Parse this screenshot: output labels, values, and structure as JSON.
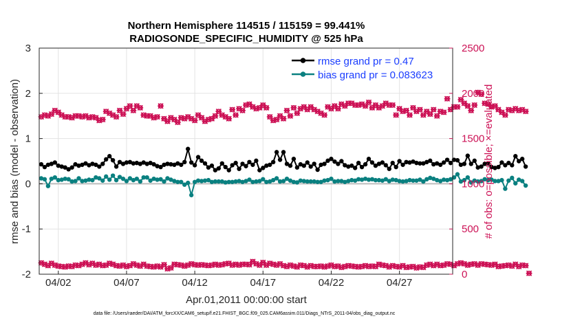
{
  "chart_data": {
    "type": "line",
    "title_line1": "Northern Hemisphere 114515 / 115159 = 99.441%",
    "title_line2": "RADIOSONDE_SPECIFIC_HUMIDITY @ 525 hPa",
    "ylabel": "rmse and bias (model - observation)",
    "ylabel_right": "# of obs: o=possible; ×=evaluated",
    "xlabel": "Apr.01,2011 00:00:00 start",
    "footnote": "data file: /Users/raeder/DAI/ATM_forcXX/CAM6_setup/f.e21.FHIST_BGC.f09_025.CAM6assim.011/Diags_NTrS_2011-04/obs_diag_output.nc",
    "ylim": [
      -2,
      3
    ],
    "ylim_right": [
      0,
      2500
    ],
    "xlim": [
      0.6,
      30.9
    ],
    "yticks": [
      "-2",
      "-1",
      "0",
      "1",
      "2",
      "3"
    ],
    "yticks_right": [
      "0",
      "500",
      "1000",
      "1500",
      "2000",
      "2500"
    ],
    "xticks": [
      {
        "day": 2,
        "label": "04/02"
      },
      {
        "day": 7,
        "label": "04/07"
      },
      {
        "day": 12,
        "label": "04/12"
      },
      {
        "day": 17,
        "label": "04/17"
      },
      {
        "day": 22,
        "label": "04/22"
      },
      {
        "day": 27,
        "label": "04/27"
      }
    ],
    "grid": true,
    "legend_position": "top-right",
    "legend": [
      {
        "label": "rmse grand pr = 0.47",
        "color": "#000000"
      },
      {
        "label": "bias grand pr = 0.083623",
        "color": "#0a8080"
      }
    ],
    "colors": {
      "rmse": "#000000",
      "bias": "#0a8080",
      "obs": "#cc1155",
      "zero_line": "#bdbdbd",
      "legend_text": "#1a3dff"
    },
    "series": [
      {
        "name": "rmse",
        "x_start": 0.75,
        "x_step": 0.25,
        "values": [
          0.43,
          0.37,
          0.42,
          0.44,
          0.47,
          0.4,
          0.38,
          0.36,
          0.32,
          0.36,
          0.43,
          0.4,
          0.42,
          0.45,
          0.41,
          0.44,
          0.42,
          0.38,
          0.44,
          0.54,
          0.61,
          0.52,
          0.38,
          0.48,
          0.44,
          0.47,
          0.48,
          0.45,
          0.46,
          0.44,
          0.47,
          0.44,
          0.46,
          0.43,
          0.39,
          0.37,
          0.42,
          0.44,
          0.43,
          0.42,
          0.45,
          0.42,
          0.48,
          0.77,
          0.47,
          0.41,
          0.59,
          0.51,
          0.45,
          0.36,
          0.4,
          0.3,
          0.34,
          0.45,
          0.37,
          0.3,
          0.41,
          0.46,
          0.33,
          0.44,
          0.39,
          0.48,
          0.42,
          0.51,
          0.3,
          0.35,
          0.4,
          0.42,
          0.48,
          0.7,
          0.53,
          0.7,
          0.44,
          0.4,
          0.55,
          0.36,
          0.43,
          0.4,
          0.47,
          0.38,
          0.44,
          0.31,
          0.42,
          0.44,
          0.51,
          0.55,
          0.49,
          0.44,
          0.5,
          0.41,
          0.38,
          0.4,
          0.35,
          0.46,
          0.37,
          0.43,
          0.55,
          0.47,
          0.4,
          0.44,
          0.47,
          0.41,
          0.33,
          0.46,
          0.37,
          0.5,
          0.42,
          0.48,
          0.47,
          0.49,
          0.46,
          0.45,
          0.45,
          0.48,
          0.51,
          0.43,
          0.45,
          0.42,
          0.47,
          0.53,
          0.46,
          0.53,
          0.52,
          0.42,
          0.44,
          0.62,
          0.44,
          0.51,
          0.36,
          0.38,
          0.44,
          0.45,
          0.37,
          0.35,
          0.37,
          0.47,
          0.41,
          0.46,
          0.41,
          0.61,
          0.5,
          0.55,
          0.38
        ]
      },
      {
        "name": "bias",
        "x_start": 0.75,
        "x_step": 0.25,
        "values": [
          0.12,
          0.1,
          -0.05,
          0.11,
          0.14,
          0.08,
          0.09,
          0.11,
          0.1,
          0.05,
          0.06,
          0.12,
          0.06,
          0.07,
          0.09,
          0.08,
          0.14,
          0.12,
          0.07,
          0.16,
          0.09,
          0.18,
          0.08,
          0.15,
          0.11,
          0.06,
          0.12,
          0.08,
          0.11,
          0.05,
          0.14,
          0.14,
          0.07,
          0.11,
          0.09,
          0.1,
          0.05,
          0.12,
          0.09,
          0.06,
          0.04,
          0.04,
          -0.02,
          0.02,
          -0.25,
          0.04,
          0.07,
          0.06,
          0.07,
          0.08,
          0.04,
          0.05,
          0.05,
          0.05,
          0.03,
          0.04,
          0.04,
          0.05,
          0.06,
          0.04,
          0.06,
          0.09,
          0.04,
          0.05,
          0.06,
          0.1,
          0.04,
          0.05,
          0.08,
          0.12,
          0.05,
          0.06,
          0.11,
          0.07,
          0.04,
          0.03,
          0.07,
          0.06,
          0.05,
          0.05,
          0.05,
          0.04,
          0.04,
          0.07,
          0.08,
          0.11,
          0.05,
          0.06,
          0.06,
          0.04,
          0.06,
          0.08,
          0.07,
          0.1,
          0.09,
          0.11,
          0.09,
          0.1,
          0.08,
          0.08,
          0.07,
          0.1,
          0.06,
          0.09,
          0.08,
          0.06,
          0.05,
          0.06,
          0.08,
          0.07,
          0.07,
          0.09,
          0.05,
          0.1,
          0.13,
          0.11,
          0.08,
          0.06,
          0.09,
          0.08,
          0.1,
          0.14,
          0.21,
          0.05,
          0.08,
          0.14,
          0.03,
          0.07,
          0.05,
          0.06,
          0.1,
          0.08,
          0.09,
          0.06,
          0.06,
          0.08,
          -0.11,
          0.07,
          0.13,
          0.01,
          0.09,
          0.06,
          -0.04
        ]
      },
      {
        "name": "obs_possible",
        "x_start": 0.75,
        "x_step": 0.25,
        "values": [
          1740,
          1760,
          1750,
          1770,
          1810,
          1790,
          1760,
          1740,
          1740,
          1730,
          1750,
          1750,
          1740,
          1750,
          1730,
          1740,
          1730,
          1700,
          1710,
          1800,
          1780,
          1760,
          1740,
          1810,
          1770,
          1830,
          1860,
          1810,
          1860,
          1840,
          1760,
          1750,
          1750,
          1730,
          1740,
          1860,
          1720,
          1690,
          1730,
          1710,
          1680,
          1730,
          1720,
          1740,
          1720,
          1700,
          1760,
          1730,
          1690,
          1710,
          1720,
          1750,
          1800,
          1760,
          1740,
          1720,
          1820,
          1760,
          1830,
          1810,
          1870,
          1880,
          1850,
          1830,
          1840,
          1870,
          1840,
          1740,
          1700,
          1710,
          1750,
          1720,
          1810,
          1750,
          1840,
          1780,
          1830,
          1850,
          1820,
          1850,
          1820,
          1800,
          1780,
          1760,
          1850,
          1830,
          1860,
          1830,
          1880,
          1860,
          1890,
          1890,
          1870,
          1870,
          1880,
          1860,
          1900,
          1840,
          1870,
          1840,
          1860,
          1890,
          1870,
          1870,
          1760,
          1830,
          1800,
          1810,
          1760,
          1840,
          1800,
          1820,
          1760,
          1800,
          1770,
          1820,
          1750,
          1800,
          1790,
          1940,
          1820,
          1850,
          1850,
          1930,
          1890,
          1860,
          1810,
          1870,
          2010,
          1990,
          1890,
          1880,
          1850,
          1860,
          1820,
          1790,
          1760,
          1820,
          1810,
          1830,
          1810,
          1820,
          1800
        ]
      },
      {
        "name": "obs_evaluated",
        "x_start": 0.75,
        "x_step": 0.25,
        "values": [
          1730,
          1760,
          1750,
          1770,
          1810,
          1790,
          1750,
          1740,
          1740,
          1730,
          1750,
          1750,
          1740,
          1750,
          1730,
          1740,
          1730,
          1700,
          1710,
          1800,
          1780,
          1760,
          1740,
          1810,
          1770,
          1830,
          1860,
          1810,
          1850,
          1840,
          1760,
          1750,
          1750,
          1730,
          1740,
          1860,
          1720,
          1690,
          1730,
          1710,
          1680,
          1730,
          1720,
          1740,
          1720,
          1700,
          1760,
          1730,
          1690,
          1710,
          1720,
          1750,
          1800,
          1760,
          1740,
          1720,
          1820,
          1760,
          1830,
          1810,
          1870,
          1880,
          1850,
          1830,
          1840,
          1870,
          1840,
          1740,
          1700,
          1710,
          1750,
          1720,
          1800,
          1750,
          1840,
          1770,
          1830,
          1850,
          1820,
          1850,
          1820,
          1800,
          1780,
          1760,
          1850,
          1830,
          1860,
          1830,
          1880,
          1860,
          1890,
          1890,
          1870,
          1870,
          1880,
          1860,
          1900,
          1840,
          1870,
          1840,
          1860,
          1890,
          1870,
          1870,
          1760,
          1830,
          1800,
          1810,
          1760,
          1840,
          1800,
          1820,
          1760,
          1800,
          1770,
          1820,
          1750,
          1800,
          1790,
          1940,
          1820,
          1850,
          1850,
          1930,
          1890,
          1860,
          1810,
          1870,
          2020,
          1990,
          1890,
          1880,
          1850,
          1860,
          1820,
          1790,
          1760,
          1820,
          1810,
          1830,
          1810,
          1820,
          1800
        ]
      },
      {
        "name": "obs_bottom",
        "x_start": 0.75,
        "x_step": 0.25,
        "values": [
          125,
          110,
          95,
          120,
          100,
          90,
          85,
          80,
          90,
          85,
          100,
          95,
          110,
          125,
          105,
          120,
          100,
          110,
          95,
          100,
          120,
          110,
          95,
          90,
          100,
          85,
          95,
          115,
          100,
          90,
          110,
          90,
          85,
          80,
          90,
          80,
          105,
          60,
          70,
          110,
          105,
          100,
          90,
          100,
          115,
          105,
          100,
          105,
          100,
          95,
          100,
          110,
          100,
          105,
          115,
          120,
          100,
          110,
          100,
          110,
          110,
          105,
          140,
          115,
          100,
          130,
          100,
          120,
          110,
          100,
          115,
          95,
          85,
          100,
          90,
          80,
          100,
          95,
          80,
          95,
          85,
          85,
          90,
          80,
          90,
          100,
          85,
          90,
          75,
          85,
          95,
          90,
          85,
          80,
          85,
          95,
          85,
          90,
          85,
          110,
          100,
          95,
          80,
          95,
          85,
          80,
          95,
          75,
          80,
          85,
          70,
          80,
          75,
          100,
          110,
          95,
          110,
          95,
          100,
          115,
          110,
          95,
          115,
          125,
          115,
          100,
          110,
          115,
          100,
          115,
          110,
          105,
          100,
          110,
          85,
          90,
          95,
          100,
          90,
          110,
          85,
          100,
          95,
          10
        ]
      }
    ]
  }
}
